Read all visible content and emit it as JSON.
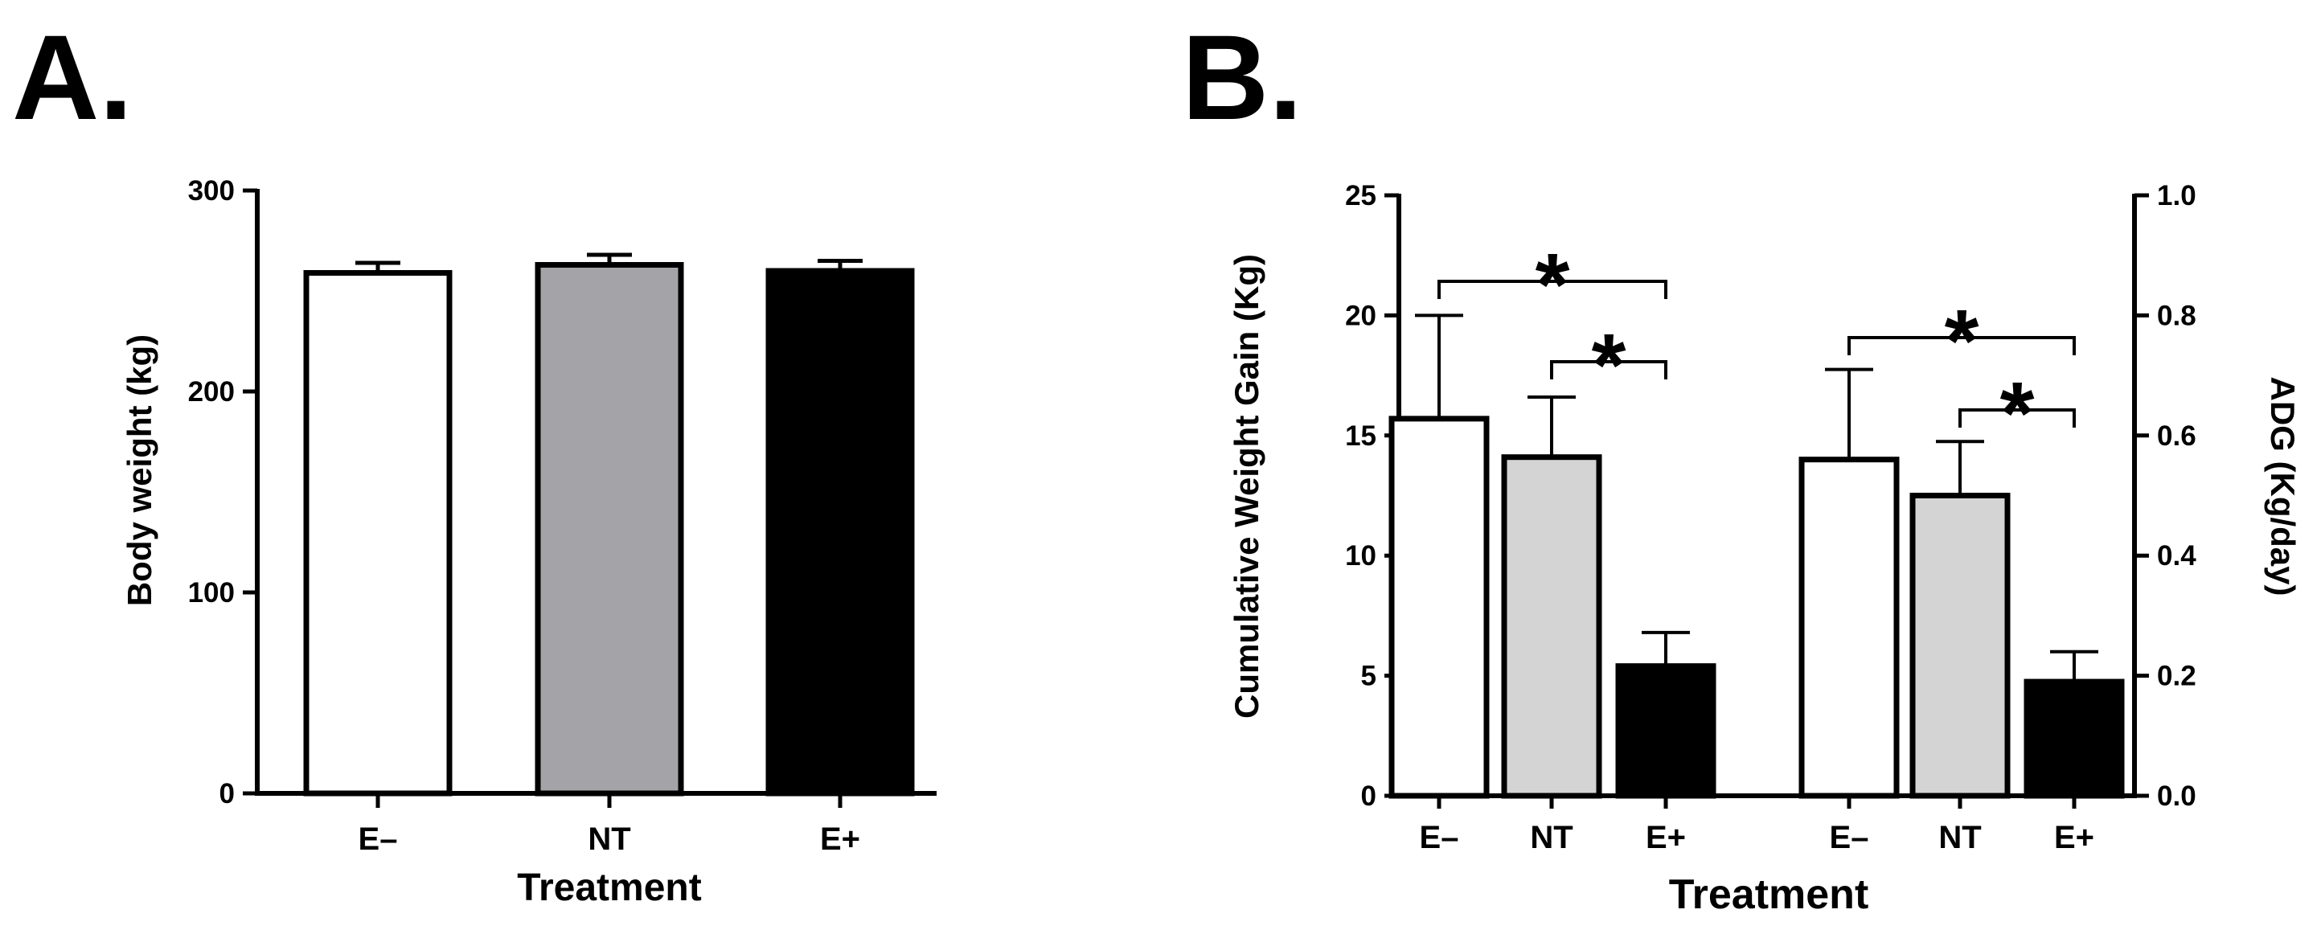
{
  "colors": {
    "e_minus": "#ffffff",
    "nt_a": "#a4a3a8",
    "nt_b": "#d4d4d4",
    "e_plus": "#000000",
    "outline": "#000000"
  },
  "chart_data": [
    {
      "type": "bar",
      "panel": "A.",
      "categories": [
        "E–",
        "NT",
        "E+"
      ],
      "values": [
        259,
        263,
        260
      ],
      "errors": [
        5,
        5,
        5
      ],
      "xlabel": "Treatment",
      "ylabel": "Body weight (kg)",
      "ylim": [
        0,
        300
      ],
      "yticks": [
        "0",
        "100",
        "200",
        "300"
      ],
      "grid": false
    },
    {
      "type": "bar",
      "panel": "B.",
      "xlabel": "Treatment",
      "groups": [
        {
          "axis": "left",
          "ylabel": "Cumulative Weight Gain (Kg)",
          "ylim": [
            0,
            25
          ],
          "yticks": [
            "0",
            "5",
            "10",
            "15",
            "20",
            "25"
          ],
          "categories": [
            "E–",
            "NT",
            "E+"
          ],
          "values": [
            15.7,
            14.1,
            5.4
          ],
          "errors": [
            4.3,
            2.5,
            1.4
          ],
          "significance": [
            {
              "from": "E–",
              "to": "E+",
              "label": "*"
            },
            {
              "from": "NT",
              "to": "E+",
              "label": "*"
            }
          ]
        },
        {
          "axis": "right",
          "ylabel": "ADG (Kg/day)",
          "ylim": [
            0.0,
            1.0
          ],
          "yticks": [
            "0.0",
            "0.2",
            "0.4",
            "0.6",
            "0.8",
            "1.0"
          ],
          "categories": [
            "E–",
            "NT",
            "E+"
          ],
          "values": [
            0.56,
            0.5,
            0.19
          ],
          "errors": [
            0.15,
            0.09,
            0.05
          ],
          "significance": [
            {
              "from": "E–",
              "to": "E+",
              "label": "*"
            },
            {
              "from": "NT",
              "to": "E+",
              "label": "*"
            }
          ]
        }
      ],
      "grid": false
    }
  ]
}
